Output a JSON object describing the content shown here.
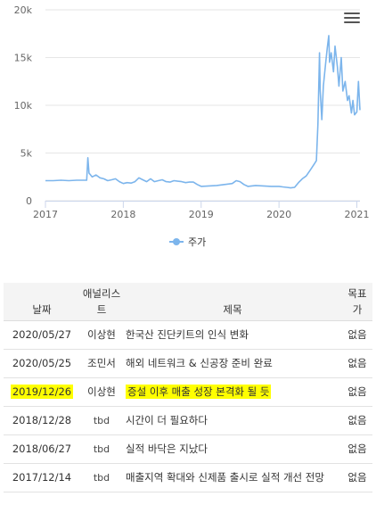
{
  "chart_data": {
    "type": "line",
    "title": "",
    "xlabel": "",
    "ylabel": "",
    "x_ticks": [
      "2017",
      "2018",
      "2019",
      "2020",
      "2021"
    ],
    "y_ticks": [
      "0",
      "5k",
      "10k",
      "15k",
      "20k"
    ],
    "ylim": [
      0,
      20000
    ],
    "xlim": [
      2017.0,
      2021.04
    ],
    "grid": "horizontal",
    "legend": "bottom-center",
    "color": "#7cb5ec",
    "series": [
      {
        "name": "주가",
        "x": [
          2017.0,
          2017.1,
          2017.2,
          2017.3,
          2017.4,
          2017.5,
          2017.53,
          2017.545,
          2017.56,
          2017.6,
          2017.65,
          2017.7,
          2017.75,
          2017.8,
          2017.85,
          2017.9,
          2017.95,
          2018.0,
          2018.05,
          2018.1,
          2018.15,
          2018.2,
          2018.25,
          2018.3,
          2018.35,
          2018.4,
          2018.45,
          2018.5,
          2018.55,
          2018.6,
          2018.65,
          2018.7,
          2018.75,
          2018.8,
          2018.85,
          2018.9,
          2018.95,
          2019.0,
          2019.1,
          2019.2,
          2019.3,
          2019.4,
          2019.45,
          2019.5,
          2019.55,
          2019.6,
          2019.7,
          2019.8,
          2019.9,
          2020.0,
          2020.05,
          2020.1,
          2020.15,
          2020.2,
          2020.25,
          2020.3,
          2020.35,
          2020.4,
          2020.45,
          2020.48,
          2020.5,
          2020.52,
          2020.53,
          2020.55,
          2020.57,
          2020.6,
          2020.62,
          2020.64,
          2020.65,
          2020.67,
          2020.7,
          2020.72,
          2020.75,
          2020.77,
          2020.8,
          2020.82,
          2020.85,
          2020.88,
          2020.9,
          2020.93,
          2020.95,
          2020.97,
          2021.0,
          2021.02,
          2021.04
        ],
        "values": [
          2100,
          2100,
          2150,
          2100,
          2150,
          2150,
          2150,
          4500,
          2900,
          2500,
          2700,
          2400,
          2300,
          2100,
          2200,
          2300,
          2000,
          1800,
          1900,
          1850,
          2000,
          2400,
          2200,
          2000,
          2300,
          2000,
          2100,
          2200,
          2000,
          1950,
          2100,
          2050,
          2000,
          1900,
          1950,
          1950,
          1700,
          1500,
          1550,
          1600,
          1700,
          1800,
          2100,
          2000,
          1700,
          1500,
          1600,
          1550,
          1500,
          1500,
          1450,
          1400,
          1350,
          1400,
          1900,
          2300,
          2600,
          3200,
          3800,
          4200,
          8000,
          15500,
          11500,
          8500,
          12000,
          14500,
          16000,
          17300,
          14500,
          15500,
          13500,
          16200,
          14000,
          12000,
          15000,
          11500,
          12500,
          10500,
          11000,
          9200,
          10500,
          9000,
          9300,
          12500,
          9500
        ]
      }
    ]
  },
  "table": {
    "headers": {
      "date": "날짜",
      "analyst_line1": "애널리스",
      "analyst_line2": "트",
      "title": "제목",
      "target_line1": "목표",
      "target_line2": "가"
    },
    "rows": [
      {
        "date": "2020/05/27",
        "analyst": "이상현",
        "title": "한국산 진단키트의 인식 변화",
        "target": "없음"
      },
      {
        "date": "2020/05/25",
        "analyst": "조민서",
        "title": "해외 네트워크 & 신공장 준비 완료",
        "target": "없음"
      },
      {
        "date": "2019/12/26",
        "analyst": "이상현",
        "title": "증설 이후 매출 성장 본격화 될 듯",
        "target": "없음",
        "highlight": true
      },
      {
        "date": "2018/12/28",
        "analyst": "tbd",
        "title": "시간이 더 필요하다",
        "target": "없음"
      },
      {
        "date": "2018/06/27",
        "analyst": "tbd",
        "title": "실적 바닥은 지났다",
        "target": "없음"
      },
      {
        "date": "2017/12/14",
        "analyst": "tbd",
        "title": "매출지역 확대와 신제품 출시로 실적 개선 전망",
        "target": "없음"
      }
    ],
    "highlight_color": "#ffff00"
  },
  "chart_menu_icon": "hamburger-menu-icon"
}
